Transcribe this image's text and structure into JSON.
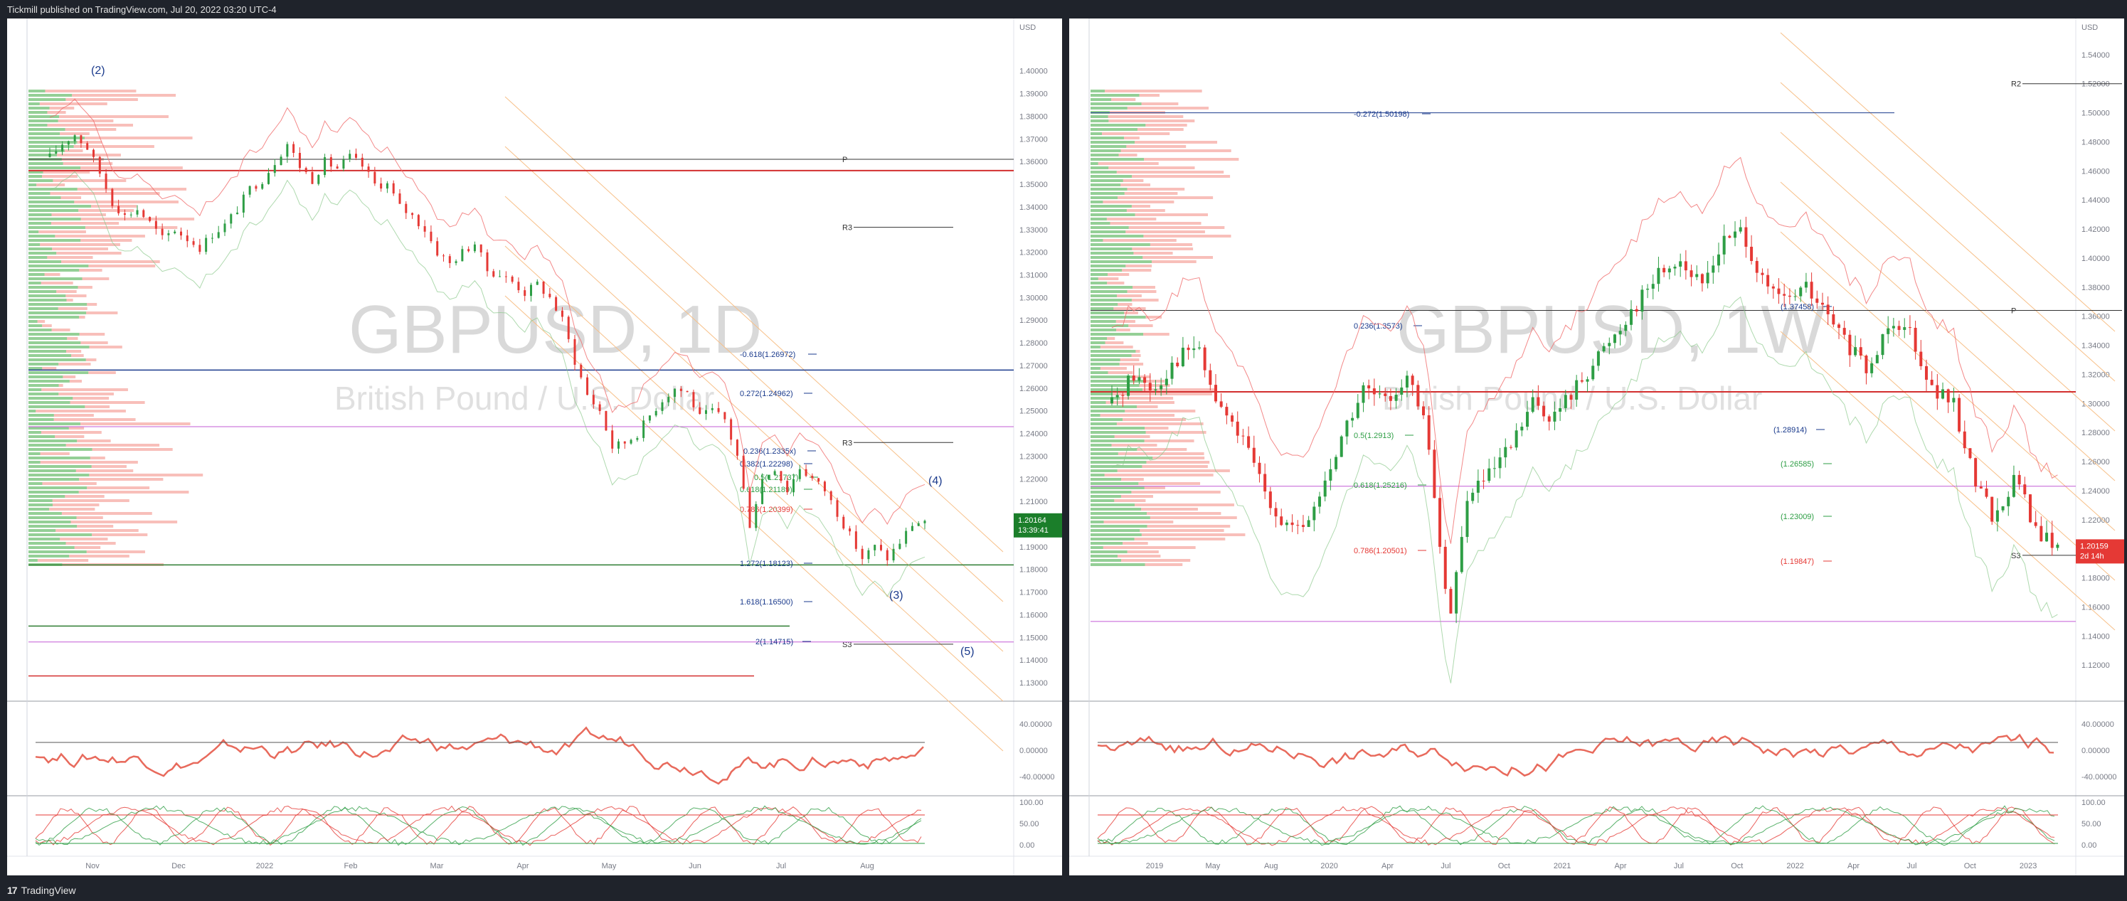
{
  "header": {
    "publisher": "Tickmill published on TradingView.com, Jul 20, 2022 03:20 UTC-4"
  },
  "footer": {
    "brand": "TradingView",
    "logo": "17"
  },
  "colors": {
    "bull": "#2e9e45",
    "bear": "#e53935",
    "blue": "#1a3a8c",
    "orange": "#f39c12"
  },
  "chart_data": [
    {
      "type": "candlestick",
      "symbol": "GBPUSD, 1D",
      "description": "British Pound / U.S. Dollar",
      "currency": "USD",
      "ylim": [
        1.125,
        1.42
      ],
      "yticks": [
        "1.40000",
        "1.39000",
        "1.38000",
        "1.37000",
        "1.36000",
        "1.35000",
        "1.34000",
        "1.33000",
        "1.32000",
        "1.31000",
        "1.30000",
        "1.29000",
        "1.28000",
        "1.27000",
        "1.26000",
        "1.25000",
        "1.24000",
        "1.23000",
        "1.22000",
        "1.21000",
        "1.20000",
        "1.19000",
        "1.18000",
        "1.17000",
        "1.16000",
        "1.15000",
        "1.14000",
        "1.13000"
      ],
      "xticks": [
        "Nov",
        "Dec",
        "2022",
        "Feb",
        "Mar",
        "Apr",
        "May",
        "Jun",
        "Jul",
        "Aug"
      ],
      "last_price": "1.20164",
      "countdown": "13:39:41",
      "close_path": [
        [
          1.362,
          0
        ],
        [
          1.368,
          5
        ],
        [
          1.372,
          10
        ],
        [
          1.366,
          15
        ],
        [
          1.355,
          20
        ],
        [
          1.342,
          25
        ],
        [
          1.336,
          30
        ],
        [
          1.339,
          35
        ],
        [
          1.333,
          40
        ],
        [
          1.326,
          45
        ],
        [
          1.33,
          50
        ],
        [
          1.326,
          55
        ],
        [
          1.322,
          60
        ],
        [
          1.328,
          65
        ],
        [
          1.332,
          70
        ],
        [
          1.339,
          75
        ],
        [
          1.348,
          80
        ],
        [
          1.352,
          85
        ],
        [
          1.36,
          90
        ],
        [
          1.368,
          95
        ],
        [
          1.358,
          100
        ],
        [
          1.352,
          105
        ],
        [
          1.36,
          110
        ],
        [
          1.357,
          115
        ],
        [
          1.362,
          120
        ],
        [
          1.358,
          125
        ],
        [
          1.35,
          130
        ],
        [
          1.35,
          135
        ],
        [
          1.34,
          140
        ],
        [
          1.336,
          145
        ],
        [
          1.33,
          150
        ],
        [
          1.32,
          155
        ],
        [
          1.315,
          160
        ],
        [
          1.32,
          165
        ],
        [
          1.324,
          170
        ],
        [
          1.312,
          175
        ],
        [
          1.31,
          180
        ],
        [
          1.307,
          185
        ],
        [
          1.302,
          190
        ],
        [
          1.306,
          195
        ],
        [
          1.3,
          200
        ],
        [
          1.29,
          205
        ],
        [
          1.272,
          210
        ],
        [
          1.257,
          215
        ],
        [
          1.25,
          220
        ],
        [
          1.234,
          225
        ],
        [
          1.236,
          230
        ],
        [
          1.24,
          235
        ],
        [
          1.248,
          240
        ],
        [
          1.255,
          245
        ],
        [
          1.26,
          250
        ],
        [
          1.258,
          255
        ],
        [
          1.247,
          260
        ],
        [
          1.25,
          265
        ],
        [
          1.246,
          270
        ],
        [
          1.23,
          275
        ],
        [
          1.2,
          280
        ],
        [
          1.22,
          285
        ],
        [
          1.225,
          290
        ],
        [
          1.215,
          295
        ],
        [
          1.225,
          300
        ],
        [
          1.22,
          305
        ],
        [
          1.215,
          310
        ],
        [
          1.205,
          315
        ],
        [
          1.195,
          320
        ],
        [
          1.185,
          325
        ],
        [
          1.19,
          330
        ],
        [
          1.185,
          335
        ],
        [
          1.192,
          340
        ],
        [
          1.2,
          345
        ],
        [
          1.2016,
          350
        ]
      ],
      "horizontal_levels": [
        {
          "label": "P",
          "price": 1.361
        },
        {
          "label": "R3",
          "price": 1.331
        },
        {
          "label": "R3",
          "price": 1.236
        },
        {
          "label": "S3",
          "price": 1.147
        }
      ],
      "fib_labels": [
        "-0.618(1.26972)",
        "0.272(1.24962)",
        "0.236(1.2335x)",
        "0.382(1.22298)",
        "0.5(1.21737)",
        "0.618(1.21189)",
        "0.786(1.20399)",
        "1.272(1.18123)",
        "1.618(1.16500)",
        "2(1.14715)"
      ],
      "waves": [
        "(2)",
        "(3)",
        "(4)",
        "(5)"
      ],
      "rsi_ticks": [
        "40.00000",
        "0.00000",
        "-40.00000"
      ],
      "stoch_ticks": [
        "100.00",
        "50.00",
        "0.00"
      ]
    },
    {
      "type": "candlestick",
      "symbol": "GBPUSD, 1W",
      "description": "British Pound / U.S. Dollar",
      "currency": "USD",
      "ylim": [
        1.1,
        1.56
      ],
      "yticks": [
        "1.54000",
        "1.52000",
        "1.50000",
        "1.48000",
        "1.46000",
        "1.44000",
        "1.42000",
        "1.40000",
        "1.38000",
        "1.36000",
        "1.34000",
        "1.32000",
        "1.30000",
        "1.28000",
        "1.26000",
        "1.24000",
        "1.22000",
        "1.20000",
        "1.18000",
        "1.16000",
        "1.14000",
        "1.12000"
      ],
      "xticks": [
        "2019",
        "May",
        "Aug",
        "2020",
        "Apr",
        "Jul",
        "Oct",
        "2021",
        "Apr",
        "Jul",
        "Oct",
        "2022",
        "Apr",
        "Jul",
        "Oct",
        "2023"
      ],
      "last_price": "1.20159",
      "countdown": "2d 14h",
      "close_path": [
        [
          1.3,
          0
        ],
        [
          1.32,
          10
        ],
        [
          1.31,
          20
        ],
        [
          1.33,
          30
        ],
        [
          1.34,
          40
        ],
        [
          1.3,
          50
        ],
        [
          1.28,
          60
        ],
        [
          1.25,
          70
        ],
        [
          1.22,
          80
        ],
        [
          1.21,
          90
        ],
        [
          1.24,
          100
        ],
        [
          1.28,
          110
        ],
        [
          1.31,
          120
        ],
        [
          1.3,
          130
        ],
        [
          1.32,
          140
        ],
        [
          1.28,
          150
        ],
        [
          1.15,
          160
        ],
        [
          1.24,
          170
        ],
        [
          1.25,
          180
        ],
        [
          1.27,
          190
        ],
        [
          1.3,
          200
        ],
        [
          1.29,
          210
        ],
        [
          1.31,
          220
        ],
        [
          1.33,
          230
        ],
        [
          1.35,
          240
        ],
        [
          1.37,
          250
        ],
        [
          1.39,
          260
        ],
        [
          1.4,
          270
        ],
        [
          1.38,
          280
        ],
        [
          1.41,
          290
        ],
        [
          1.42,
          300
        ],
        [
          1.38,
          310
        ],
        [
          1.37,
          320
        ],
        [
          1.38,
          330
        ],
        [
          1.36,
          340
        ],
        [
          1.34,
          350
        ],
        [
          1.32,
          360
        ],
        [
          1.36,
          370
        ],
        [
          1.35,
          380
        ],
        [
          1.31,
          390
        ],
        [
          1.3,
          400
        ],
        [
          1.25,
          410
        ],
        [
          1.22,
          420
        ],
        [
          1.25,
          430
        ],
        [
          1.21,
          440
        ],
        [
          1.2016,
          450
        ]
      ],
      "horizontal_levels": [
        {
          "label": "R2",
          "price": 1.52
        },
        {
          "label": "P",
          "price": 1.364
        },
        {
          "label": "S3",
          "price": 1.1955
        }
      ],
      "fib_labels": [
        "-0.272(1.50198)",
        "0.236(1.3573)",
        "0.5(1.2913)",
        "0.618(1.25216)",
        "0.786(1.20501)",
        "(1.37458)",
        "(1.28914)",
        "(1.26585)",
        "(1.23009)",
        "(1.19847)"
      ],
      "rsi_ticks": [
        "40.00000",
        "0.00000",
        "-40.00000"
      ],
      "stoch_ticks": [
        "100.00",
        "50.00",
        "0.00"
      ]
    }
  ]
}
